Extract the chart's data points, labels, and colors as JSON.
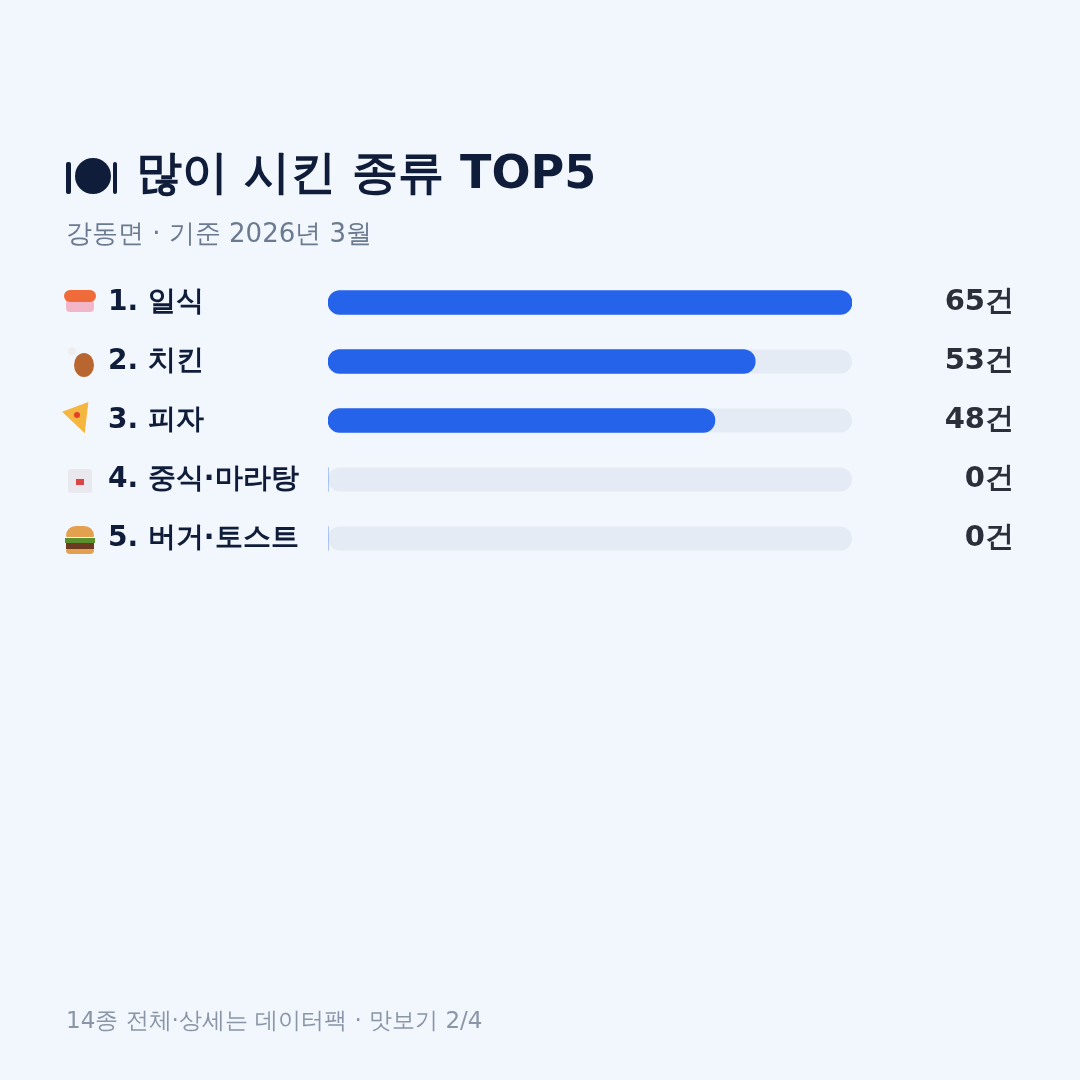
{
  "chart_data": {
    "type": "bar",
    "orientation": "horizontal",
    "title": "많이 시킨 종류 TOP5",
    "subtitle": "강동면 · 기준 2026년 3월",
    "categories": [
      "1. 일식",
      "2. 치킨",
      "3. 피자",
      "4. 중식·마라탕",
      "5. 버거·토스트"
    ],
    "values": [
      65,
      53,
      48,
      0,
      0
    ],
    "value_labels": [
      "65건",
      "53건",
      "48건",
      "0건",
      "0건"
    ],
    "color": "#2563eb",
    "xlim": [
      0,
      65
    ],
    "annotations": [
      "14종 전체·상세는 데이터팩 · 맛보기 2/4"
    ]
  }
}
